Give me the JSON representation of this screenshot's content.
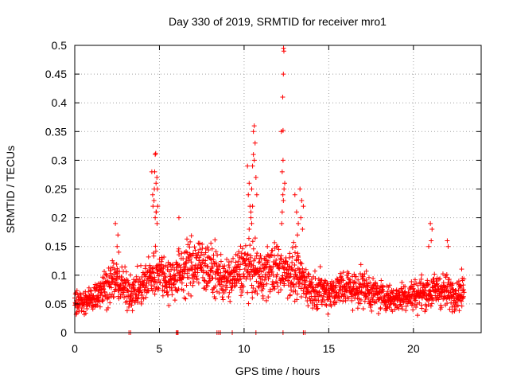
{
  "chart_data": {
    "type": "scatter",
    "title": "Day 330 of 2019, SRMTID for receiver mro1",
    "xlabel": "GPS time / hours",
    "ylabel": "SRMTID / TECUs",
    "xlim": [
      0,
      24
    ],
    "ylim": [
      0,
      0.5
    ],
    "x_ticks": [
      0,
      5,
      10,
      15,
      20
    ],
    "x_tick_labels": [
      "0",
      "5",
      "10",
      "15",
      "20"
    ],
    "y_ticks": [
      0,
      0.05,
      0.1,
      0.15,
      0.2,
      0.25,
      0.3,
      0.35,
      0.4,
      0.45,
      0.5
    ],
    "y_tick_labels": [
      "0",
      "0.05",
      "0.1",
      "0.15",
      "0.2",
      "0.25",
      "0.3",
      "0.35",
      "0.4",
      "0.45",
      "0.5"
    ],
    "grid": true,
    "marker": "+",
    "series": [
      {
        "name": "SRMTID",
        "color": "#ff0000",
        "baseline_profile": {
          "hours": [
            0,
            0.5,
            1,
            1.5,
            2,
            2.5,
            3,
            3.5,
            4,
            4.5,
            5,
            5.5,
            6,
            6.5,
            7,
            7.5,
            8,
            8.5,
            9,
            9.5,
            10,
            10.5,
            11,
            11.5,
            12,
            12.5,
            13,
            13.5,
            14,
            14.5,
            15,
            15.5,
            16,
            16.5,
            17,
            17.5,
            18,
            18.5,
            19,
            19.5,
            20,
            20.5,
            21,
            21.5,
            22,
            22.5,
            23
          ],
          "level": [
            0.06,
            0.05,
            0.06,
            0.075,
            0.085,
            0.09,
            0.075,
            0.07,
            0.08,
            0.1,
            0.11,
            0.09,
            0.1,
            0.11,
            0.12,
            0.12,
            0.11,
            0.1,
            0.09,
            0.1,
            0.115,
            0.11,
            0.1,
            0.11,
            0.11,
            0.11,
            0.1,
            0.09,
            0.075,
            0.075,
            0.07,
            0.075,
            0.08,
            0.075,
            0.08,
            0.07,
            0.065,
            0.06,
            0.06,
            0.065,
            0.065,
            0.07,
            0.07,
            0.075,
            0.07,
            0.07,
            0.07
          ]
        },
        "bursts": [
          {
            "x": [
              4.55,
              4.6,
              4.62,
              4.7,
              4.72,
              4.75,
              4.78,
              4.8,
              4.82,
              4.85,
              4.88,
              4.9,
              4.75,
              4.8,
              4.68,
              4.86
            ],
            "y": [
              0.28,
              0.24,
              0.22,
              0.25,
              0.28,
              0.31,
              0.312,
              0.26,
              0.21,
              0.27,
              0.25,
              0.22,
              0.2,
              0.21,
              0.23,
              0.19
            ]
          },
          {
            "x": [
              10.2,
              10.25,
              10.3,
              10.35,
              10.4,
              10.45,
              10.5,
              10.55,
              10.6,
              10.65,
              10.7,
              10.75,
              10.55,
              10.6,
              10.5,
              10.45,
              10.3,
              10.4
            ],
            "y": [
              0.29,
              0.24,
              0.26,
              0.22,
              0.2,
              0.25,
              0.29,
              0.35,
              0.36,
              0.33,
              0.27,
              0.24,
              0.31,
              0.3,
              0.22,
              0.19,
              0.18,
              0.21
            ]
          },
          {
            "x": [
              12.2,
              12.25,
              12.3,
              12.32,
              12.35,
              12.33,
              12.28,
              12.3,
              12.4,
              12.25,
              12.32,
              12.36,
              12.22,
              12.29
            ],
            "y": [
              0.35,
              0.28,
              0.3,
              0.45,
              0.49,
              0.495,
              0.41,
              0.352,
              0.26,
              0.21,
              0.23,
              0.25,
              0.19,
              0.24
            ]
          },
          {
            "x": [
              13.0,
              13.1,
              13.2,
              13.3,
              13.4,
              13.5,
              13.15,
              13.35,
              13.45,
              13.05
            ],
            "y": [
              0.24,
              0.21,
              0.19,
              0.25,
              0.23,
              0.22,
              0.17,
              0.2,
              0.18,
              0.15
            ]
          },
          {
            "x": [
              2.4,
              2.5,
              2.6,
              2.55
            ],
            "y": [
              0.19,
              0.15,
              0.14,
              0.17
            ]
          },
          {
            "x": [
              6.15
            ],
            "y": [
              0.2
            ]
          },
          {
            "x": [
              21.0,
              21.05,
              21.1,
              20.9,
              22.0,
              22.05
            ],
            "y": [
              0.19,
              0.16,
              0.18,
              0.15,
              0.16,
              0.15
            ]
          }
        ],
        "zero_markers_hours": [
          3.2,
          3.3,
          6.0,
          6.05,
          6.1,
          8.4,
          8.5,
          8.6,
          9.3,
          10.7,
          12.3,
          13.5,
          13.6
        ]
      }
    ]
  }
}
